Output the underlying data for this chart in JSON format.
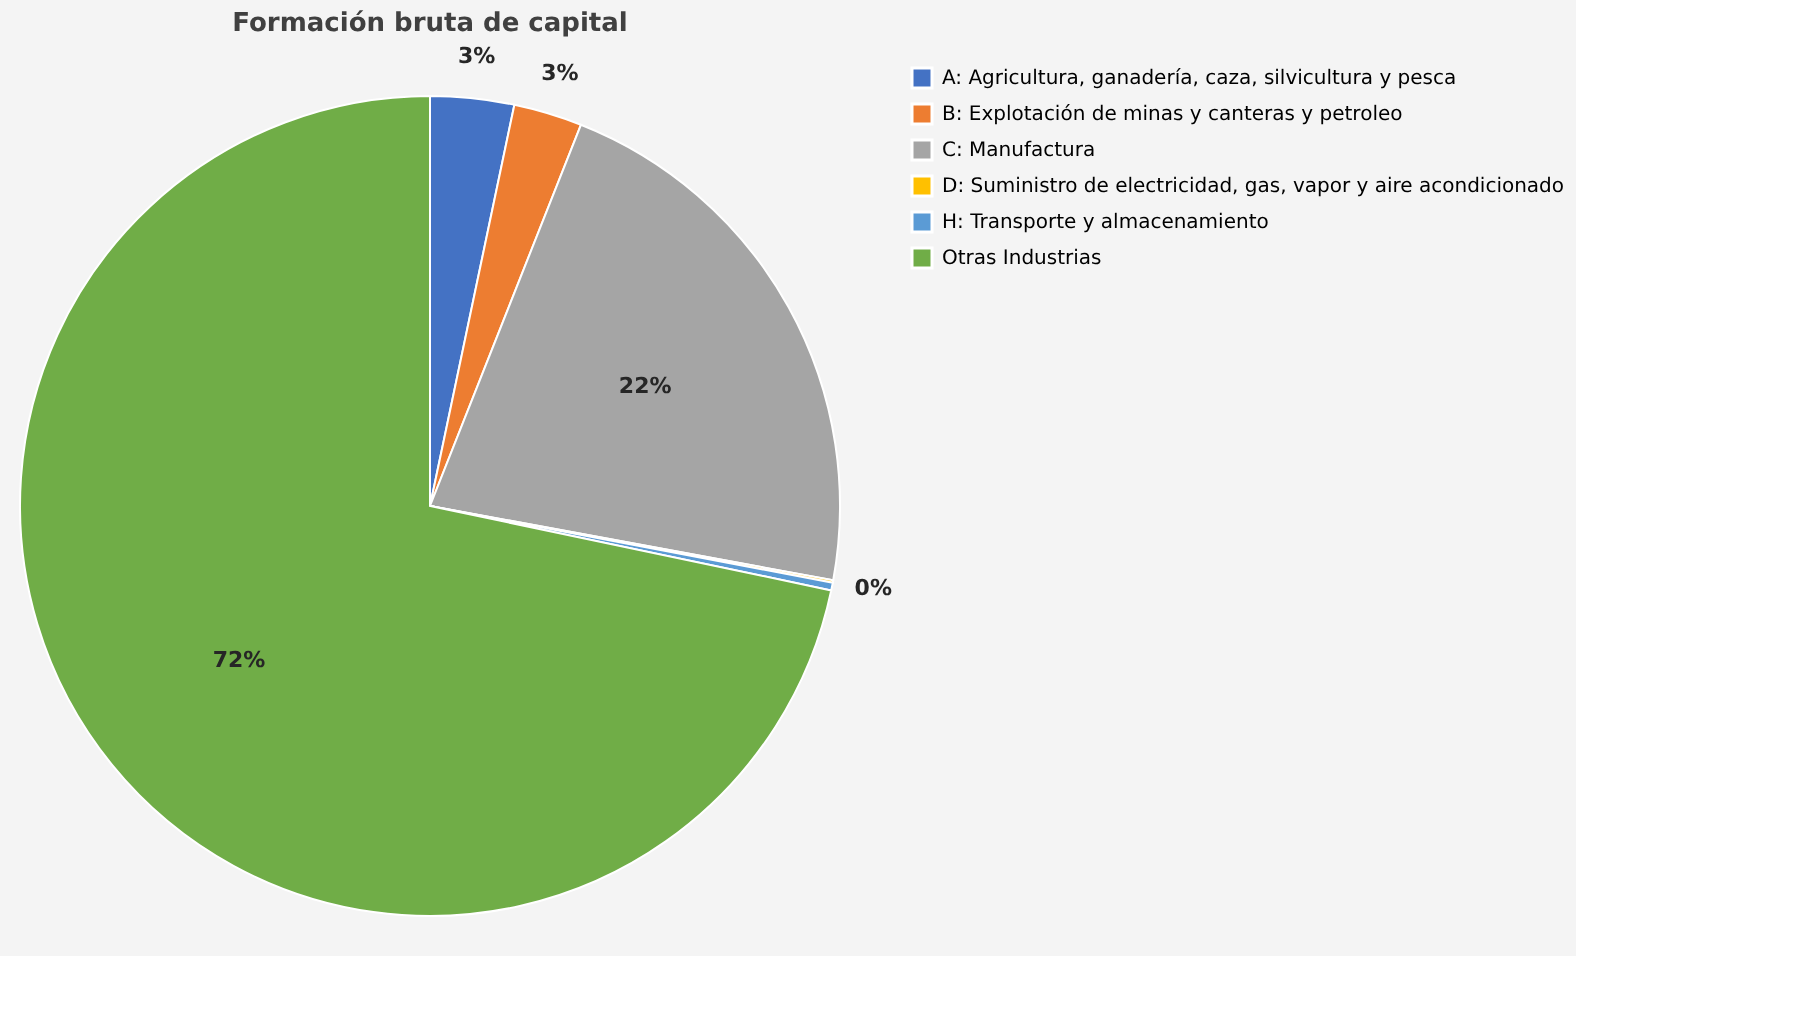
{
  "chart_data": {
    "type": "pie",
    "title": "Formación bruta de capital",
    "categories": [
      "A: Agricultura, ganadería, caza, silvicultura y pesca",
      "B: Explotación de minas y canteras y petroleo",
      "C: Manufactura",
      "D: Suministro de electricidad, gas, vapor y aire acondicionado",
      "H: Transporte y almacenamiento",
      "Otras Industrias"
    ],
    "values": [
      3.3,
      2.7,
      21.9,
      0.1,
      0.3,
      71.7
    ],
    "colors": [
      "#4472c4",
      "#ed7d31",
      "#a5a5a5",
      "#ffc000",
      "#5b9bd5",
      "#70ad47"
    ],
    "value_labels": [
      "3%",
      "3%",
      "22%",
      "0%",
      null,
      "72%"
    ],
    "legend": "right"
  }
}
